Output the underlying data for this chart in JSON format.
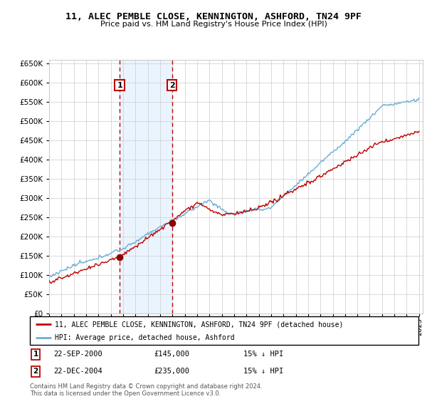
{
  "title": "11, ALEC PEMBLE CLOSE, KENNINGTON, ASHFORD, TN24 9PF",
  "subtitle": "Price paid vs. HM Land Registry's House Price Index (HPI)",
  "legend_line1": "11, ALEC PEMBLE CLOSE, KENNINGTON, ASHFORD, TN24 9PF (detached house)",
  "legend_line2": "HPI: Average price, detached house, Ashford",
  "sale1_date": "22-SEP-2000",
  "sale1_price": 145000,
  "sale1_label": "15% ↓ HPI",
  "sale2_date": "22-DEC-2004",
  "sale2_price": 235000,
  "sale2_label": "15% ↓ HPI",
  "footer": "Contains HM Land Registry data © Crown copyright and database right 2024.\nThis data is licensed under the Open Government Licence v3.0.",
  "hpi_color": "#6aaed6",
  "price_color": "#c00000",
  "sale_marker_color": "#8b0000",
  "dashed_line_color": "#c00000",
  "shade_color": "#ddeeff",
  "grid_color": "#cccccc",
  "bg_color": "#ffffff",
  "ylim": [
    0,
    660000
  ],
  "yticks": [
    0,
    50000,
    100000,
    150000,
    200000,
    250000,
    300000,
    350000,
    400000,
    450000,
    500000,
    550000,
    600000,
    650000
  ],
  "year_start": 1995,
  "year_end": 2025,
  "sale1_year": 2000.72,
  "sale2_year": 2004.97
}
